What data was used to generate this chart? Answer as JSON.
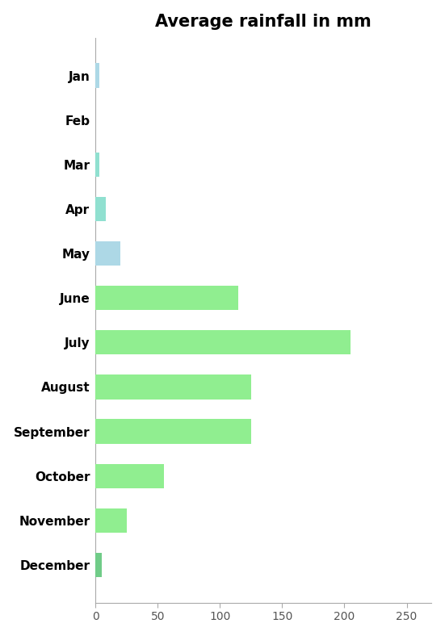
{
  "months": [
    "Jan",
    "Feb",
    "Mar",
    "Apr",
    "May",
    "June",
    "July",
    "August",
    "September",
    "October",
    "November",
    "December"
  ],
  "values": [
    3,
    0,
    3,
    8,
    20,
    115,
    205,
    125,
    125,
    55,
    25,
    5
  ],
  "colors": [
    "#add8e6",
    "#ffffff",
    "#90e0d0",
    "#90e0d0",
    "#add8e6",
    "#90ee90",
    "#90ee90",
    "#90ee90",
    "#90ee90",
    "#90ee90",
    "#90ee90",
    "#70cc88"
  ],
  "title": "Average rainfall in mm",
  "xlim": [
    0,
    270
  ],
  "xticks": [
    0,
    50,
    100,
    150,
    200,
    250
  ],
  "title_fontsize": 15,
  "label_fontsize": 11,
  "tick_fontsize": 10,
  "background_color": "#ffffff",
  "bar_height": 0.55
}
